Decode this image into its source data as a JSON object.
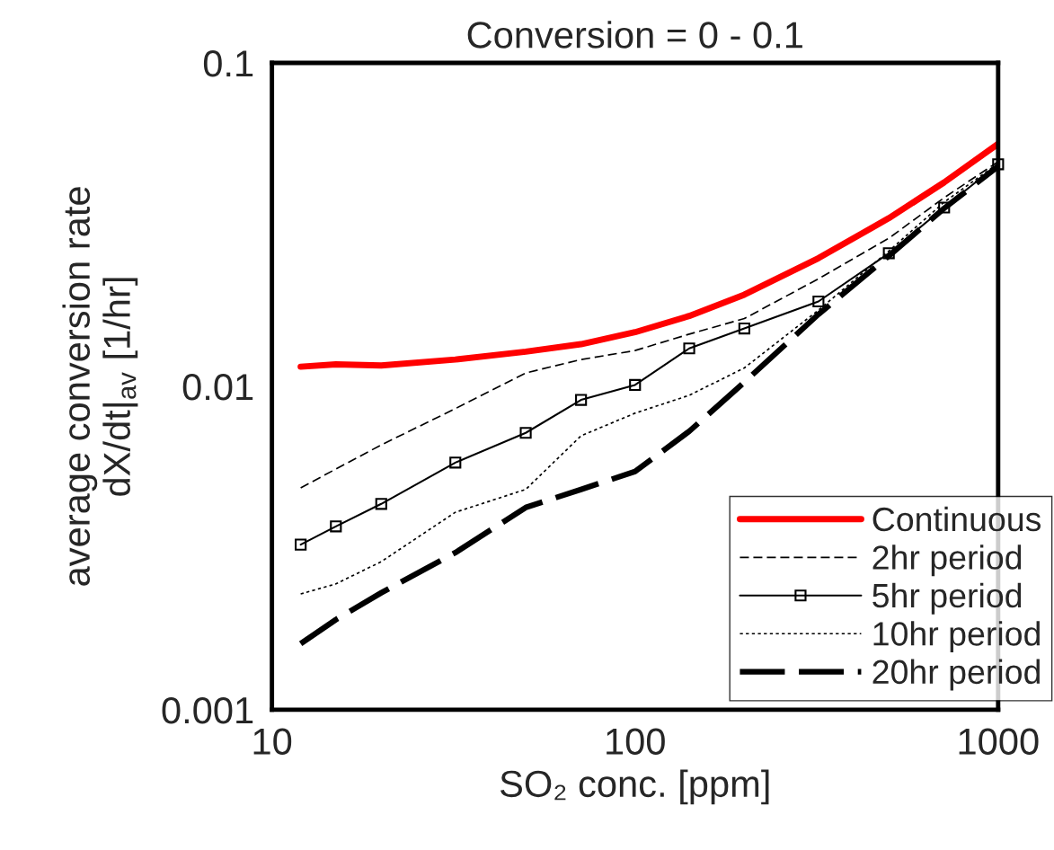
{
  "chart_data": {
    "type": "line",
    "title": "Conversion = 0 - 0.1",
    "xlabel": "SO₂ conc. [ppm]",
    "ylabel": "average conversion rate\ndX/dt|$_{av}$ [1/hr]",
    "log": "xy",
    "xlim": [
      10,
      1000
    ],
    "ylim": [
      0.001,
      0.1
    ],
    "xticks": [
      10,
      100,
      1000
    ],
    "yticks": [
      0.001,
      0.01,
      0.1
    ],
    "grid": false,
    "legend": "bottom right",
    "x": [
      12,
      15,
      20,
      32,
      50,
      71,
      100,
      141,
      200,
      320,
      500,
      710,
      1000
    ],
    "series": [
      {
        "name": "Continuous",
        "color": "#ff0000",
        "line_style": "solid",
        "marker": "none",
        "values": [
          0.0115,
          0.0117,
          0.0116,
          0.0121,
          0.0128,
          0.0135,
          0.0147,
          0.0165,
          0.0192,
          0.0249,
          0.0331,
          0.0427,
          0.0562
        ]
      },
      {
        "name": "2hr period",
        "color": "#000000",
        "line_style": "dashed",
        "marker": "none",
        "values": [
          0.00485,
          0.00555,
          0.00659,
          0.00853,
          0.011,
          0.0121,
          0.0129,
          0.0145,
          0.0162,
          0.0215,
          0.0287,
          0.0383,
          0.0495
        ]
      },
      {
        "name": "5hr period",
        "color": "#000000",
        "line_style": "solid",
        "marker": "square",
        "values": [
          0.00324,
          0.00369,
          0.00433,
          0.00581,
          0.00718,
          0.00908,
          0.0101,
          0.0131,
          0.0151,
          0.0183,
          0.0258,
          0.0357,
          0.0486
        ]
      },
      {
        "name": "10hr period",
        "color": "#000000",
        "line_style": "dotted",
        "marker": "none",
        "values": [
          0.00228,
          0.00245,
          0.00287,
          0.00408,
          0.0048,
          0.00703,
          0.00826,
          0.00938,
          0.0114,
          0.0172,
          0.0262,
          0.0371,
          0.0489
        ]
      },
      {
        "name": "20hr period",
        "color": "#000000",
        "line_style": "dashed",
        "marker": "none",
        "values": [
          0.0016,
          0.0019,
          0.0023,
          0.00306,
          0.00422,
          0.0048,
          0.00545,
          0.00726,
          0.0103,
          0.0167,
          0.0253,
          0.0355,
          0.0479
        ]
      }
    ]
  }
}
